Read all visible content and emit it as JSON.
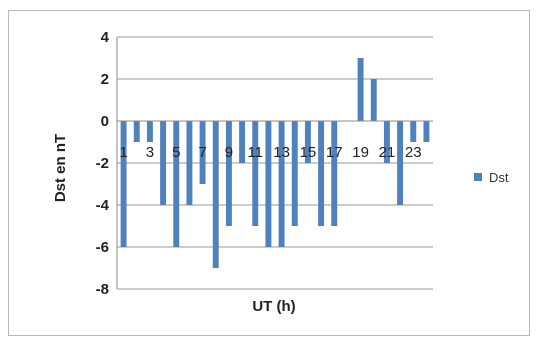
{
  "chart_data": {
    "type": "bar",
    "x": [
      1,
      2,
      3,
      4,
      5,
      6,
      7,
      8,
      9,
      10,
      11,
      12,
      13,
      14,
      15,
      16,
      17,
      18,
      19,
      20,
      21,
      22,
      23,
      24
    ],
    "x_tick_labels": [
      "1",
      "3",
      "5",
      "7",
      "9",
      "11",
      "13",
      "15",
      "17",
      "19",
      "21",
      "23"
    ],
    "series": [
      {
        "name": "Dst",
        "values": [
          -6,
          -1,
          -1,
          -4,
          -6,
          -4,
          -3,
          -7,
          -5,
          -2,
          -5,
          -6,
          -6,
          -5,
          -2,
          -5,
          -5,
          0,
          3,
          2,
          -2,
          -4,
          -1,
          -1
        ]
      }
    ],
    "xlabel": "UT (h)",
    "ylabel": "Dst  en  nT",
    "ylim": [
      -8,
      4
    ],
    "yticks": [
      4,
      2,
      0,
      -2,
      -4,
      -6,
      -8
    ],
    "grid": true,
    "legend_position": "right",
    "colors": {
      "bar": "#4f81bd",
      "grid": "#9a9a9a",
      "axis": "#8c8c8c"
    }
  }
}
